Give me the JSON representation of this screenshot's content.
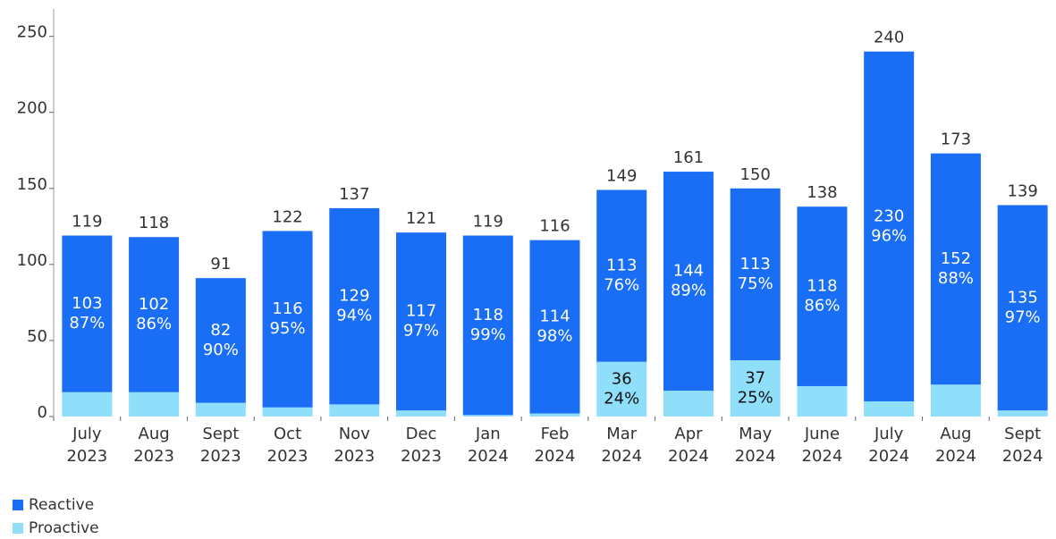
{
  "chart_data": {
    "type": "stacked_bar",
    "categories": [
      [
        "July",
        "2023"
      ],
      [
        "Aug",
        "2023"
      ],
      [
        "Sept",
        "2023"
      ],
      [
        "Oct",
        "2023"
      ],
      [
        "Nov",
        "2023"
      ],
      [
        "Dec",
        "2023"
      ],
      [
        "Jan",
        "2024"
      ],
      [
        "Feb",
        "2024"
      ],
      [
        "Mar",
        "2024"
      ],
      [
        "Apr",
        "2024"
      ],
      [
        "May",
        "2024"
      ],
      [
        "June",
        "2024"
      ],
      [
        "July",
        "2024"
      ],
      [
        "Aug",
        "2024"
      ],
      [
        "Sept",
        "2024"
      ]
    ],
    "series": [
      {
        "name": "Proactive",
        "color": "#8fdffb",
        "values": [
          16,
          16,
          9,
          6,
          8,
          4,
          1,
          2,
          36,
          17,
          37,
          20,
          10,
          21,
          4
        ],
        "percent_labels": [
          null,
          null,
          null,
          null,
          null,
          null,
          null,
          null,
          "24%",
          null,
          "25%",
          null,
          null,
          null,
          null
        ]
      },
      {
        "name": "Reactive",
        "color": "#1a6ef5",
        "values": [
          103,
          102,
          82,
          116,
          129,
          117,
          118,
          114,
          113,
          144,
          113,
          118,
          230,
          152,
          135
        ],
        "percent_labels": [
          "87%",
          "86%",
          "90%",
          "95%",
          "94%",
          "97%",
          "99%",
          "98%",
          "76%",
          "89%",
          "75%",
          "86%",
          "96%",
          "88%",
          "97%"
        ]
      }
    ],
    "totals": [
      119,
      118,
      91,
      122,
      137,
      121,
      119,
      116,
      149,
      161,
      150,
      138,
      240,
      173,
      139
    ],
    "ylim": [
      0,
      268
    ],
    "yticks": [
      0,
      50,
      100,
      150,
      200,
      250
    ]
  }
}
